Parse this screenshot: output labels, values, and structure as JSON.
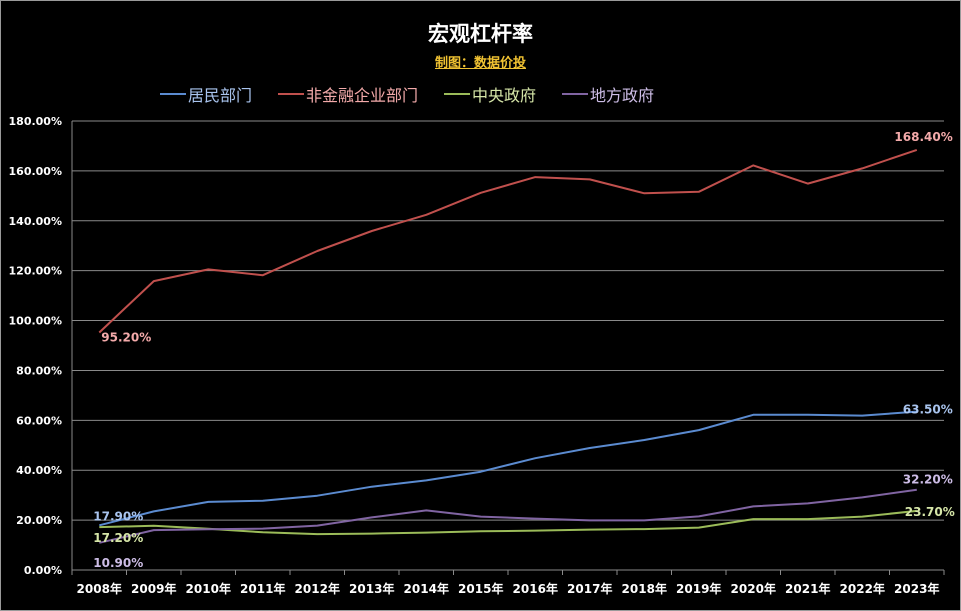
{
  "title": "宏观杠杆率",
  "subtitle": "制图：数据价投",
  "colors": {
    "background": "#000000",
    "grid": "#8a8a8a",
    "tick_text": "#ffffff"
  },
  "chart_data": {
    "type": "line",
    "title": "宏观杠杆率",
    "xlabel": "",
    "ylabel": "",
    "ylim": [
      0,
      180
    ],
    "yticks": [
      0,
      20,
      40,
      60,
      80,
      100,
      120,
      140,
      160,
      180
    ],
    "ytick_labels": [
      "0.00%",
      "20.00%",
      "40.00%",
      "60.00%",
      "80.00%",
      "100.00%",
      "120.00%",
      "140.00%",
      "160.00%",
      "180.00%"
    ],
    "grid": true,
    "legend_position": "top",
    "categories": [
      "2008年",
      "2009年",
      "2010年",
      "2011年",
      "2012年",
      "2013年",
      "2014年",
      "2015年",
      "2016年",
      "2017年",
      "2018年",
      "2019年",
      "2020年",
      "2021年",
      "2022年",
      "2023年"
    ],
    "series": [
      {
        "name": "居民部门",
        "color": "#5b8bd0",
        "label_color": "#a9c4ee",
        "values": [
          17.9,
          23.5,
          27.3,
          27.8,
          29.8,
          33.4,
          35.9,
          39.4,
          44.8,
          48.9,
          52.1,
          56.1,
          62.2,
          62.2,
          61.9,
          63.5
        ],
        "labels": [
          "17.90%",
          "",
          "",
          "",
          "",
          "",
          "",
          "",
          "",
          "",
          "",
          "",
          "",
          "",
          "",
          "63.50%"
        ]
      },
      {
        "name": "非金融企业部门",
        "color": "#c0504d",
        "label_color": "#f3aaaa",
        "values": [
          95.2,
          115.8,
          120.5,
          118.2,
          127.9,
          135.9,
          142.4,
          151.2,
          157.5,
          156.6,
          151.0,
          151.6,
          162.2,
          154.9,
          161.0,
          168.4
        ],
        "labels": [
          "95.20%",
          "",
          "",
          "",
          "",
          "",
          "",
          "",
          "",
          "",
          "",
          "",
          "",
          "",
          "",
          "168.40%"
        ]
      },
      {
        "name": "中央政府",
        "color": "#9bbb59",
        "label_color": "#d6e6a8",
        "values": [
          17.2,
          17.7,
          16.5,
          15.1,
          14.4,
          14.6,
          15.0,
          15.5,
          15.8,
          16.2,
          16.4,
          17.0,
          20.4,
          20.4,
          21.4,
          23.7
        ],
        "labels": [
          "17.20%",
          "",
          "",
          "",
          "",
          "",
          "",
          "",
          "",
          "",
          "",
          "",
          "",
          "",
          "",
          "23.70%"
        ]
      },
      {
        "name": "地方政府",
        "color": "#8064a2",
        "label_color": "#cdbde6",
        "values": [
          10.9,
          16.0,
          16.3,
          16.6,
          17.8,
          21.1,
          23.9,
          21.4,
          20.6,
          19.9,
          19.9,
          21.5,
          25.5,
          26.7,
          29.1,
          32.2
        ],
        "labels": [
          "10.90%",
          "",
          "",
          "",
          "",
          "",
          "",
          "",
          "",
          "",
          "",
          "",
          "",
          "",
          "",
          "32.20%"
        ]
      }
    ]
  }
}
